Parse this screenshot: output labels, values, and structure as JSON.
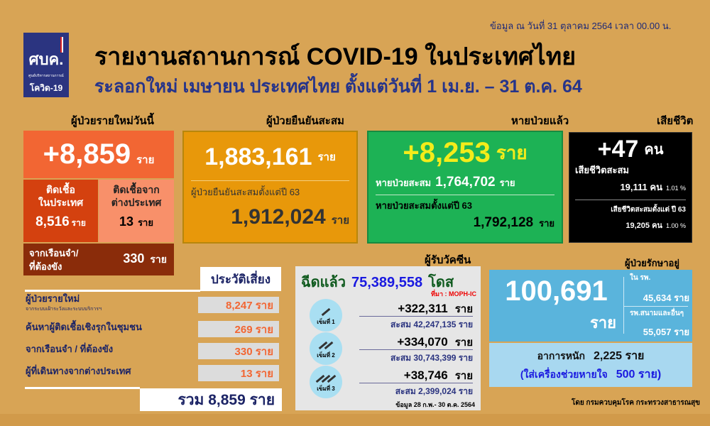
{
  "header": {
    "date": "ข้อมูล ณ วันที่ 31 ตุลาคม 2564 เวลา 00.00 น.",
    "title": "รายงานสถานการณ์ COVID-19 ในประเทศไทย",
    "subtitle": "ระลอกใหม่ เมษายน ประเทศไทย ตั้งแต่วันที่ 1 เม.ย. – 31 ต.ค. 64"
  },
  "logo": {
    "line1": "ศบค.",
    "line2": "ศูนย์บริหารสถานการณ์",
    "line3": "โควิด-19"
  },
  "new_cases": {
    "header": "ผู้ป่วยรายใหม่วันนี้",
    "value": "+8,859",
    "unit": "ราย",
    "domestic_label1": "ติดเชื้อ",
    "domestic_label2": "ในประเทศ",
    "domestic_value": "8,516",
    "domestic_unit": "ราย",
    "abroad_label1": "ติดเชื้อจาก",
    "abroad_label2": "ต่างประเทศ",
    "abroad_value": "13",
    "abroad_unit": "ราย",
    "prison_label1": "จากเรือนจำ/",
    "prison_label2": "ที่ต้องขัง",
    "prison_value": "330",
    "prison_unit": "ราย"
  },
  "cumulative": {
    "header": "ผู้ป่วยยืนยันสะสม",
    "value": "1,883,161",
    "unit": "ราย",
    "since63_label": "ผู้ป่วยยืนยันสะสมตั้งแต่ปี 63",
    "since63_value": "1,912,024",
    "since63_unit": "ราย"
  },
  "recovered": {
    "header": "หายป่วยแล้ว",
    "value": "+8,253",
    "unit": "ราย",
    "cum_label": "หายป่วยสะสม",
    "cum_value": "1,764,702",
    "cum_unit": "ราย",
    "since63_label": "หายป่วยสะสมตั้งแต่ปี 63",
    "since63_value": "1,792,128",
    "since63_unit": "ราย"
  },
  "deaths": {
    "header": "เสียชีวิต",
    "value": "+47",
    "unit": "คน",
    "cum_label": "เสียชีวิตสะสม",
    "cum_value": "19,111 คน",
    "cum_pct": "1.01 %",
    "since63_label": "เสียชีวิตสะสมตั้งแต่ ปี 63",
    "since63_value": "19,205 คน",
    "since63_pct": "1.00 %"
  },
  "risk": {
    "header": "ประวัติเสี่ยง",
    "rows": [
      {
        "label": "ผู้ป่วยรายใหม่",
        "sublabel": "จากระบบเฝ้าระวังและระบบบริการฯ",
        "value": "8,247 ราย"
      },
      {
        "label": "ค้นหาผู้ติดเชื้อเชิงรุกในชุมชน",
        "value": "269 ราย"
      },
      {
        "label": "จากเรือนจำ / ที่ต้องขัง",
        "value": "330 ราย"
      },
      {
        "label": "ผู้ที่เดินทางจากต่างประเทศ",
        "value": "13 ราย"
      }
    ],
    "total": "รวม 8,859 ราย"
  },
  "vaccine": {
    "header": "ผู้รับวัคซีน",
    "injected_label": "ฉีดแล้ว",
    "injected_value": "75,389,558",
    "injected_unit": "โดส",
    "source": "ที่มา : MOPH-IC",
    "doses": [
      {
        "label": "เข็มที่ 1",
        "today": "+322,311",
        "unit": "ราย",
        "cum": "สะสม 42,247,135 ราย"
      },
      {
        "label": "เข็มที่ 2",
        "today": "+334,070",
        "unit": "ราย",
        "cum": "สะสม 30,743,399 ราย"
      },
      {
        "label": "เข็มที่ 3",
        "today": "+38,746",
        "unit": "ราย",
        "cum": "สะสม 2,399,024 ราย"
      }
    ],
    "note": "ข้อมูล 28 ก.พ.- 30 ต.ค. 2564"
  },
  "treatment": {
    "header": "ผู้ป่วยรักษาอยู่",
    "value": "100,691",
    "unit": "ราย",
    "hospital_label": "ใน รพ.",
    "hospital_value": "45,634 ราย",
    "field_label": "รพ.สนามและอื่นๆ",
    "field_value": "55,057 ราย",
    "severe_label": "อาการหนัก",
    "severe_value": "2,225 ราย",
    "vent_label": "(ใส่เครื่องช่วยหายใจ",
    "vent_value": "500 ราย)"
  },
  "footer": "โดย กรมควบคุมโรค กระทรวงสาธารณสุข",
  "colors": {
    "background": "#d8a455",
    "new_cases": "#f26633",
    "cumulative": "#e8980a",
    "recovered": "#1db255",
    "deaths": "#000000",
    "vaccine_box": "#e6e6e6",
    "treatment": "#5ab4dc",
    "navy": "#26348a"
  }
}
